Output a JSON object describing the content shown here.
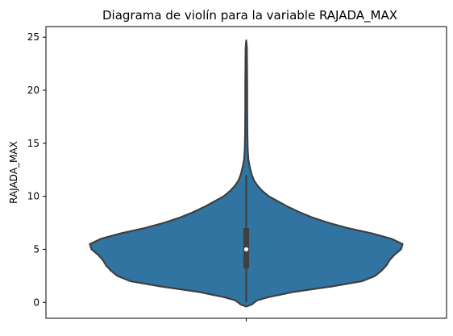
{
  "chart_data": {
    "type": "violin",
    "title": "Diagrama de violín para la variable RAJADA_MAX",
    "xlabel": "",
    "ylabel": "RAJADA_MAX",
    "ylim": [
      -1.5,
      26
    ],
    "yticks": [
      0,
      5,
      10,
      15,
      20,
      25
    ],
    "grid": false,
    "fill_color": "#3274a1",
    "outline_color": "#3f3f3f",
    "summary": {
      "min": -0.4,
      "q1": 3.2,
      "median": 5.0,
      "q3": 7.0,
      "whisker_low": 0.0,
      "whisker_high": 12.0,
      "max": 24.7
    },
    "density_profile": [
      {
        "y": -0.4,
        "w": 0.0
      },
      {
        "y": -0.2,
        "w": 0.035
      },
      {
        "y": 0.0,
        "w": 0.05
      },
      {
        "y": 0.2,
        "w": 0.07
      },
      {
        "y": 0.5,
        "w": 0.14
      },
      {
        "y": 1.0,
        "w": 0.3
      },
      {
        "y": 1.5,
        "w": 0.53
      },
      {
        "y": 2.0,
        "w": 0.72
      },
      {
        "y": 2.5,
        "w": 0.8
      },
      {
        "y": 3.0,
        "w": 0.84
      },
      {
        "y": 3.5,
        "w": 0.87
      },
      {
        "y": 4.0,
        "w": 0.89
      },
      {
        "y": 4.5,
        "w": 0.92
      },
      {
        "y": 5.0,
        "w": 0.96
      },
      {
        "y": 5.5,
        "w": 0.97
      },
      {
        "y": 6.0,
        "w": 0.9
      },
      {
        "y": 6.5,
        "w": 0.78
      },
      {
        "y": 7.0,
        "w": 0.63
      },
      {
        "y": 7.5,
        "w": 0.51
      },
      {
        "y": 8.0,
        "w": 0.41
      },
      {
        "y": 8.5,
        "w": 0.33
      },
      {
        "y": 9.0,
        "w": 0.26
      },
      {
        "y": 9.5,
        "w": 0.2
      },
      {
        "y": 10.0,
        "w": 0.14
      },
      {
        "y": 10.5,
        "w": 0.1
      },
      {
        "y": 11.0,
        "w": 0.07
      },
      {
        "y": 11.5,
        "w": 0.048
      },
      {
        "y": 12.0,
        "w": 0.035
      },
      {
        "y": 12.5,
        "w": 0.026
      },
      {
        "y": 13.0,
        "w": 0.019
      },
      {
        "y": 13.5,
        "w": 0.013
      },
      {
        "y": 14.5,
        "w": 0.009
      },
      {
        "y": 16.0,
        "w": 0.007
      },
      {
        "y": 18.0,
        "w": 0.006
      },
      {
        "y": 20.0,
        "w": 0.006
      },
      {
        "y": 22.0,
        "w": 0.005
      },
      {
        "y": 24.0,
        "w": 0.004
      },
      {
        "y": 24.7,
        "w": 0.0
      }
    ]
  }
}
